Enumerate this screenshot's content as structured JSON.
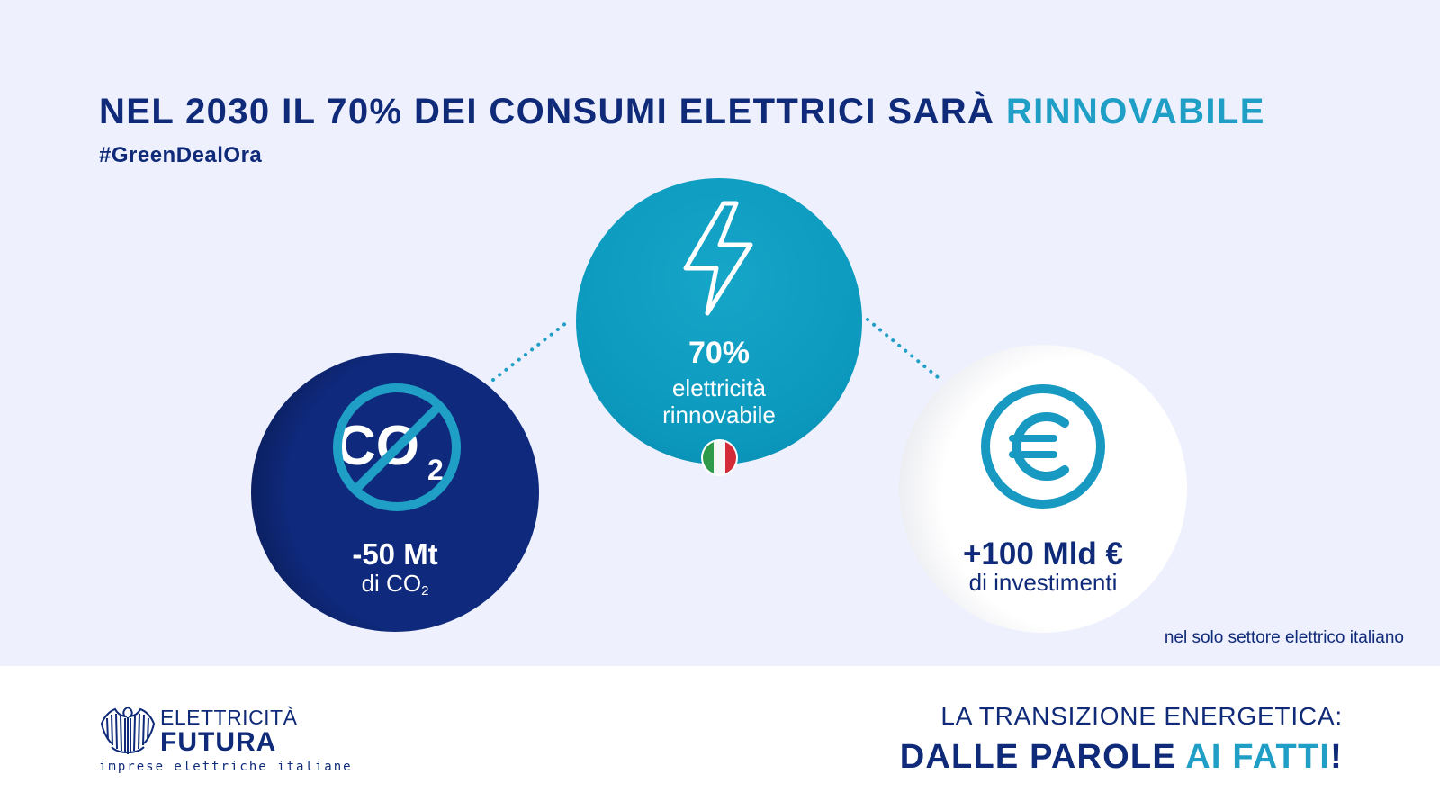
{
  "headline": {
    "main": "NEL 2030 IL 70% DEI CONSUMI ELETTRICI SARÀ ",
    "accent": "RINNOVABILE"
  },
  "hashtag": "#GreenDealOra",
  "stats": {
    "renewable": {
      "value": "70%",
      "caption_line1": "elettricità",
      "caption_line2": "rinnovabile",
      "icon": "lightning-bolt-icon",
      "flag_icon": "italian-flag-icon"
    },
    "co2": {
      "value": "-50 Mt",
      "caption_prefix": "di CO",
      "caption_subscript": "2",
      "icon": "no-co2-icon",
      "icon_text": "CO",
      "icon_subscript": "2"
    },
    "investments": {
      "value": "+100 Mld €",
      "caption": "di investimenti",
      "icon": "euro-icon"
    }
  },
  "footnote": "nel solo settore elettrico italiano",
  "logo": {
    "line1": "ELETTRICITÀ",
    "line2": "FUTURA",
    "tagline": "imprese elettriche italiane"
  },
  "slogan": {
    "line1": "LA TRANSIZIONE ENERGETICA:",
    "line2_main": "DALLE PAROLE ",
    "line2_accent": "AI FATTI",
    "line2_end": "!"
  },
  "colors": {
    "navy": "#0f2a78",
    "accent_blue": "#1f9fc6",
    "teal_circle": "#0b98bd",
    "panel_background": "#eef1fd"
  }
}
